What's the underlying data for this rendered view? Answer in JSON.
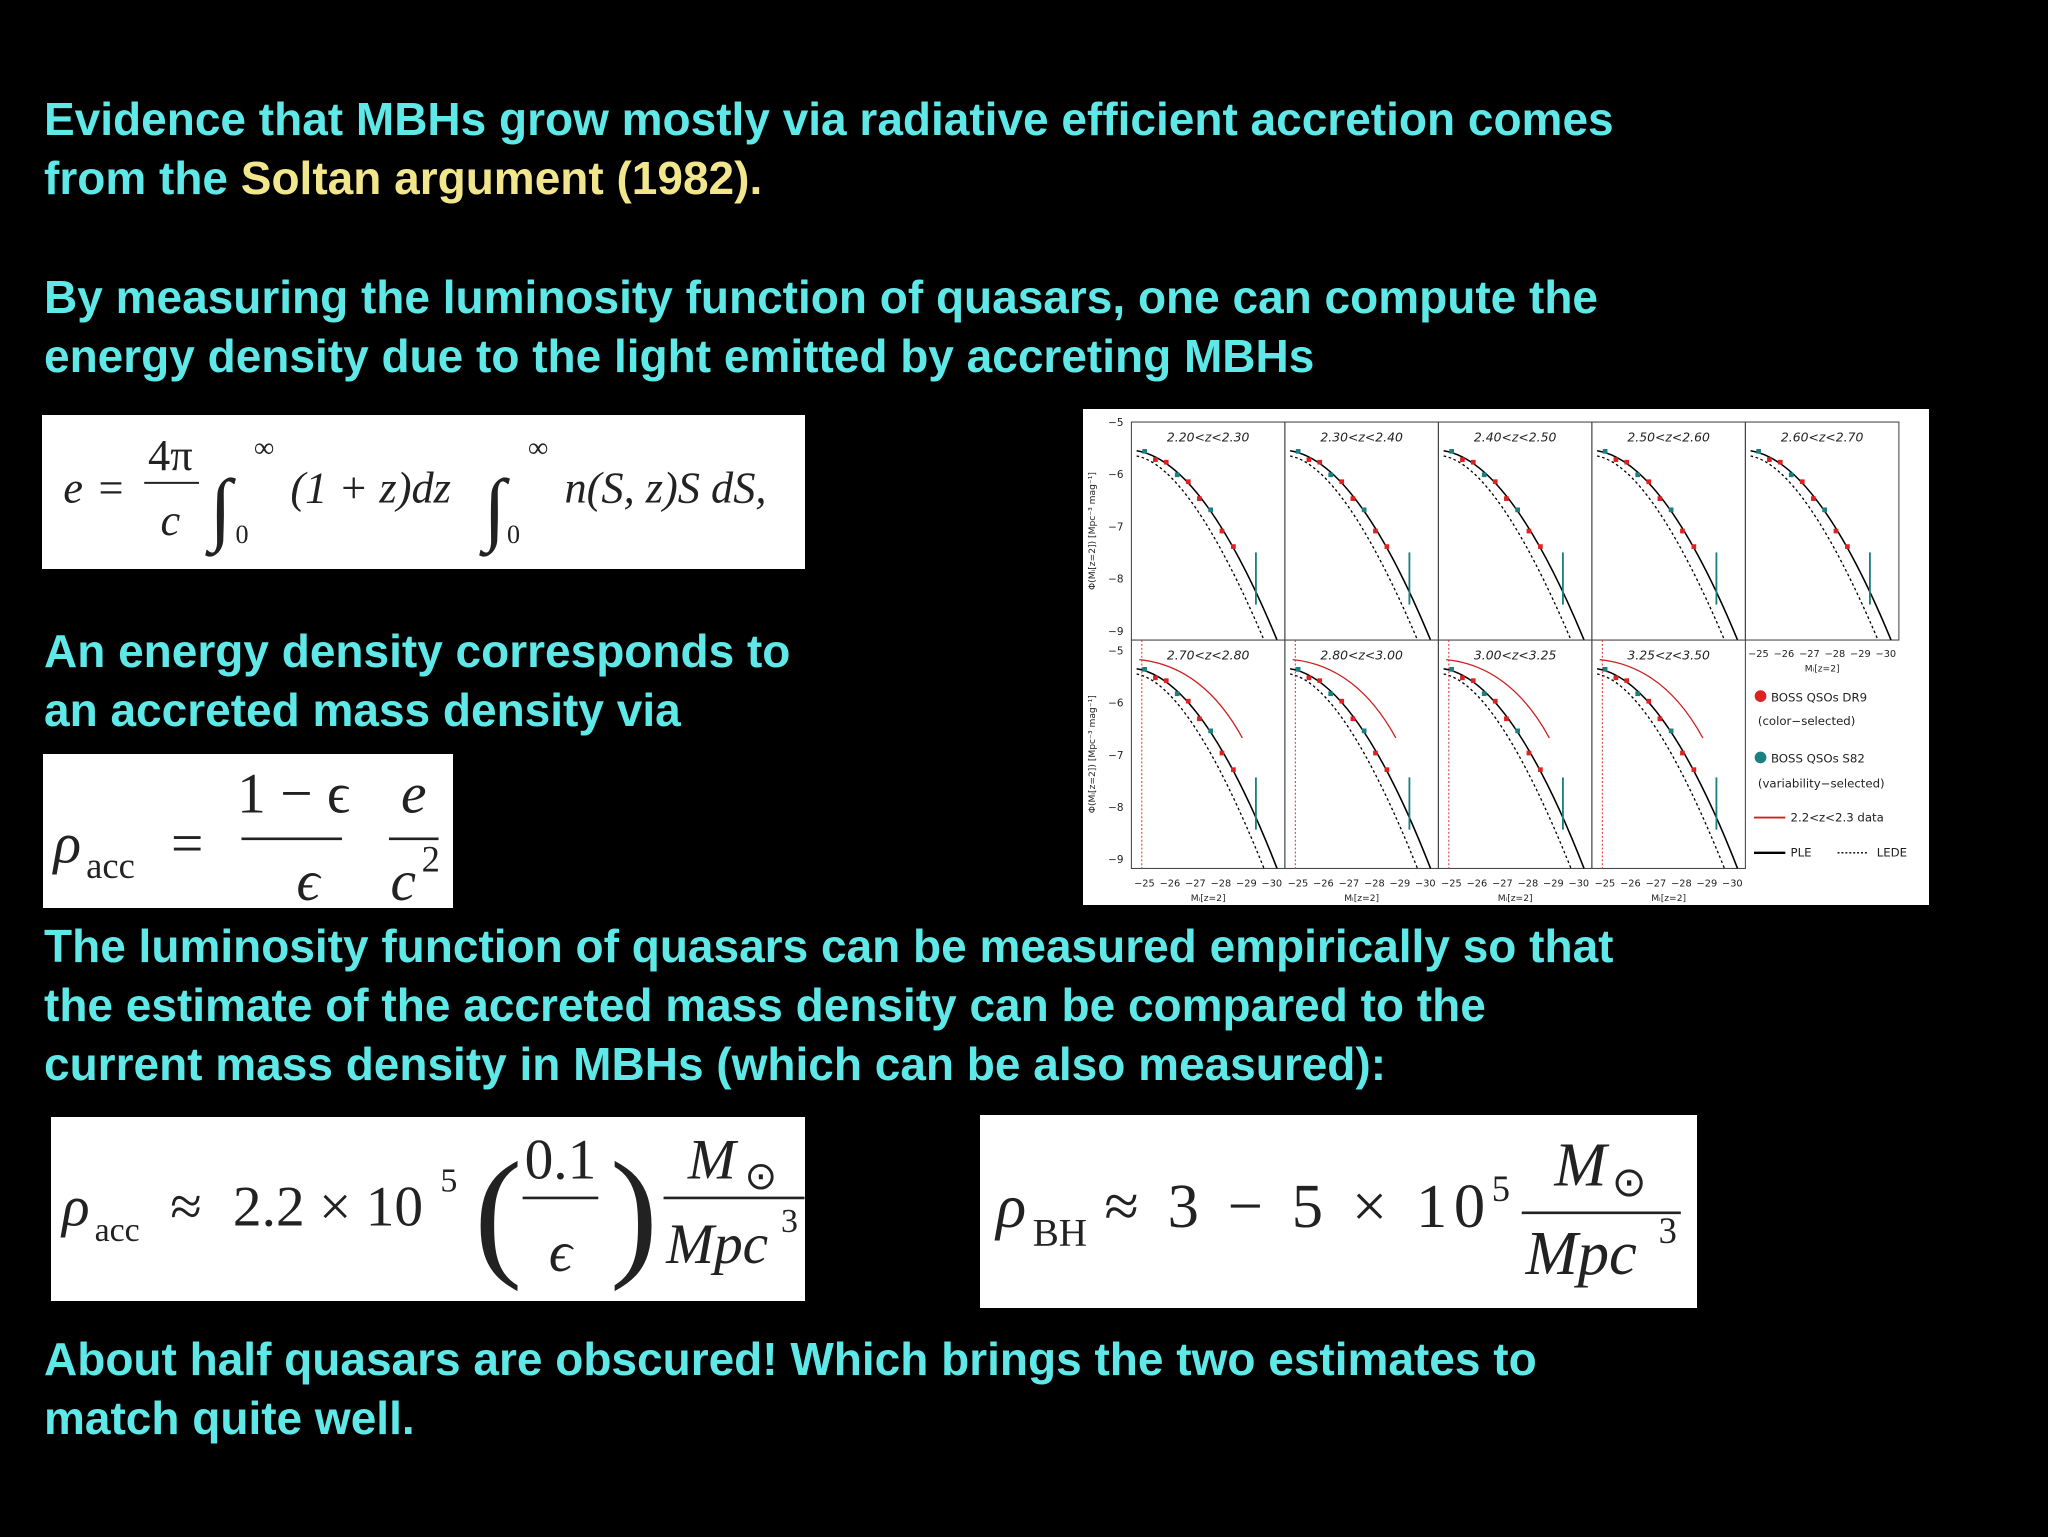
{
  "intro": {
    "line1": "Evidence that MBHs grow mostly via radiative efficient accretion comes",
    "line2": {
      "before": "from the ",
      "highlight": "Soltan argument (1982)",
      "after": "."
    }
  },
  "luminosity": {
    "lines": [
      "By measuring the luminosity function of quasars, one can compute the",
      "energy density due to the light emitted by accreting MBHs"
    ]
  },
  "equation_energy": {
    "tokens": [
      "e",
      "=",
      "4π",
      "c",
      "∫",
      "0",
      "∞",
      "(1 + z)dz",
      "∫",
      "0",
      "∞",
      "n(S, z)S  dS,"
    ]
  },
  "conversion": {
    "lines": [
      "An energy density corresponds to",
      "an accreted mass density via"
    ]
  },
  "equation_rho_acc": {
    "tokens": [
      "ρ",
      "acc",
      "=",
      "1 − ϵ",
      "ϵ",
      "e",
      "c",
      "2"
    ]
  },
  "comparison": {
    "lines": [
      "The luminosity function of quasars can be measured empirically so that",
      "the estimate of the accreted mass density can be compared to the",
      "current mass density in MBHs (which can be also measured):"
    ]
  },
  "equation_rho_acc_estimate": {
    "tokens": [
      "ρ",
      "acc",
      "≈",
      "2.2 × 10",
      "5",
      "(",
      "0.1",
      "ϵ",
      ")",
      "M",
      "⊙",
      "Mpc",
      "3"
    ]
  },
  "equation_rho_bh": {
    "tokens": [
      "ρ",
      "BH",
      "≈ 3 − 5 × 10",
      "5",
      "M",
      "⊙",
      "Mpc",
      "3"
    ]
  },
  "conclusion": {
    "lines": [
      "About half quasars are obscured! Which brings the two estimates to",
      "match quite well."
    ]
  },
  "figure": {
    "panels": [
      "2.20<z<2.30",
      "2.30<z<2.40",
      "2.40<z<2.50",
      "2.50<z<2.60",
      "2.60<z<2.70",
      "2.70<z<2.80",
      "2.80<z<3.00",
      "3.00<z<3.25",
      "3.25<z<3.50"
    ],
    "y_axis_label": "Φ(Mᵢ[z=2]) [Mpc⁻³ mag⁻¹]",
    "y_ticks": [
      "−5",
      "−6",
      "−7",
      "−8",
      "−9"
    ],
    "x_axis_label": "Mᵢ[z=2]",
    "x_ticks": [
      "−25",
      "−26",
      "−27",
      "−28",
      "−29",
      "−30"
    ],
    "legend": {
      "dr9": "BOSS QSOs DR9",
      "dr9_note": "(color−selected)",
      "s82": "BOSS QSOs S82",
      "s82_note": "(variability−selected)",
      "data": "2.2<z<2.3 data",
      "ple": "PLE",
      "lede": "LEDE"
    }
  }
}
